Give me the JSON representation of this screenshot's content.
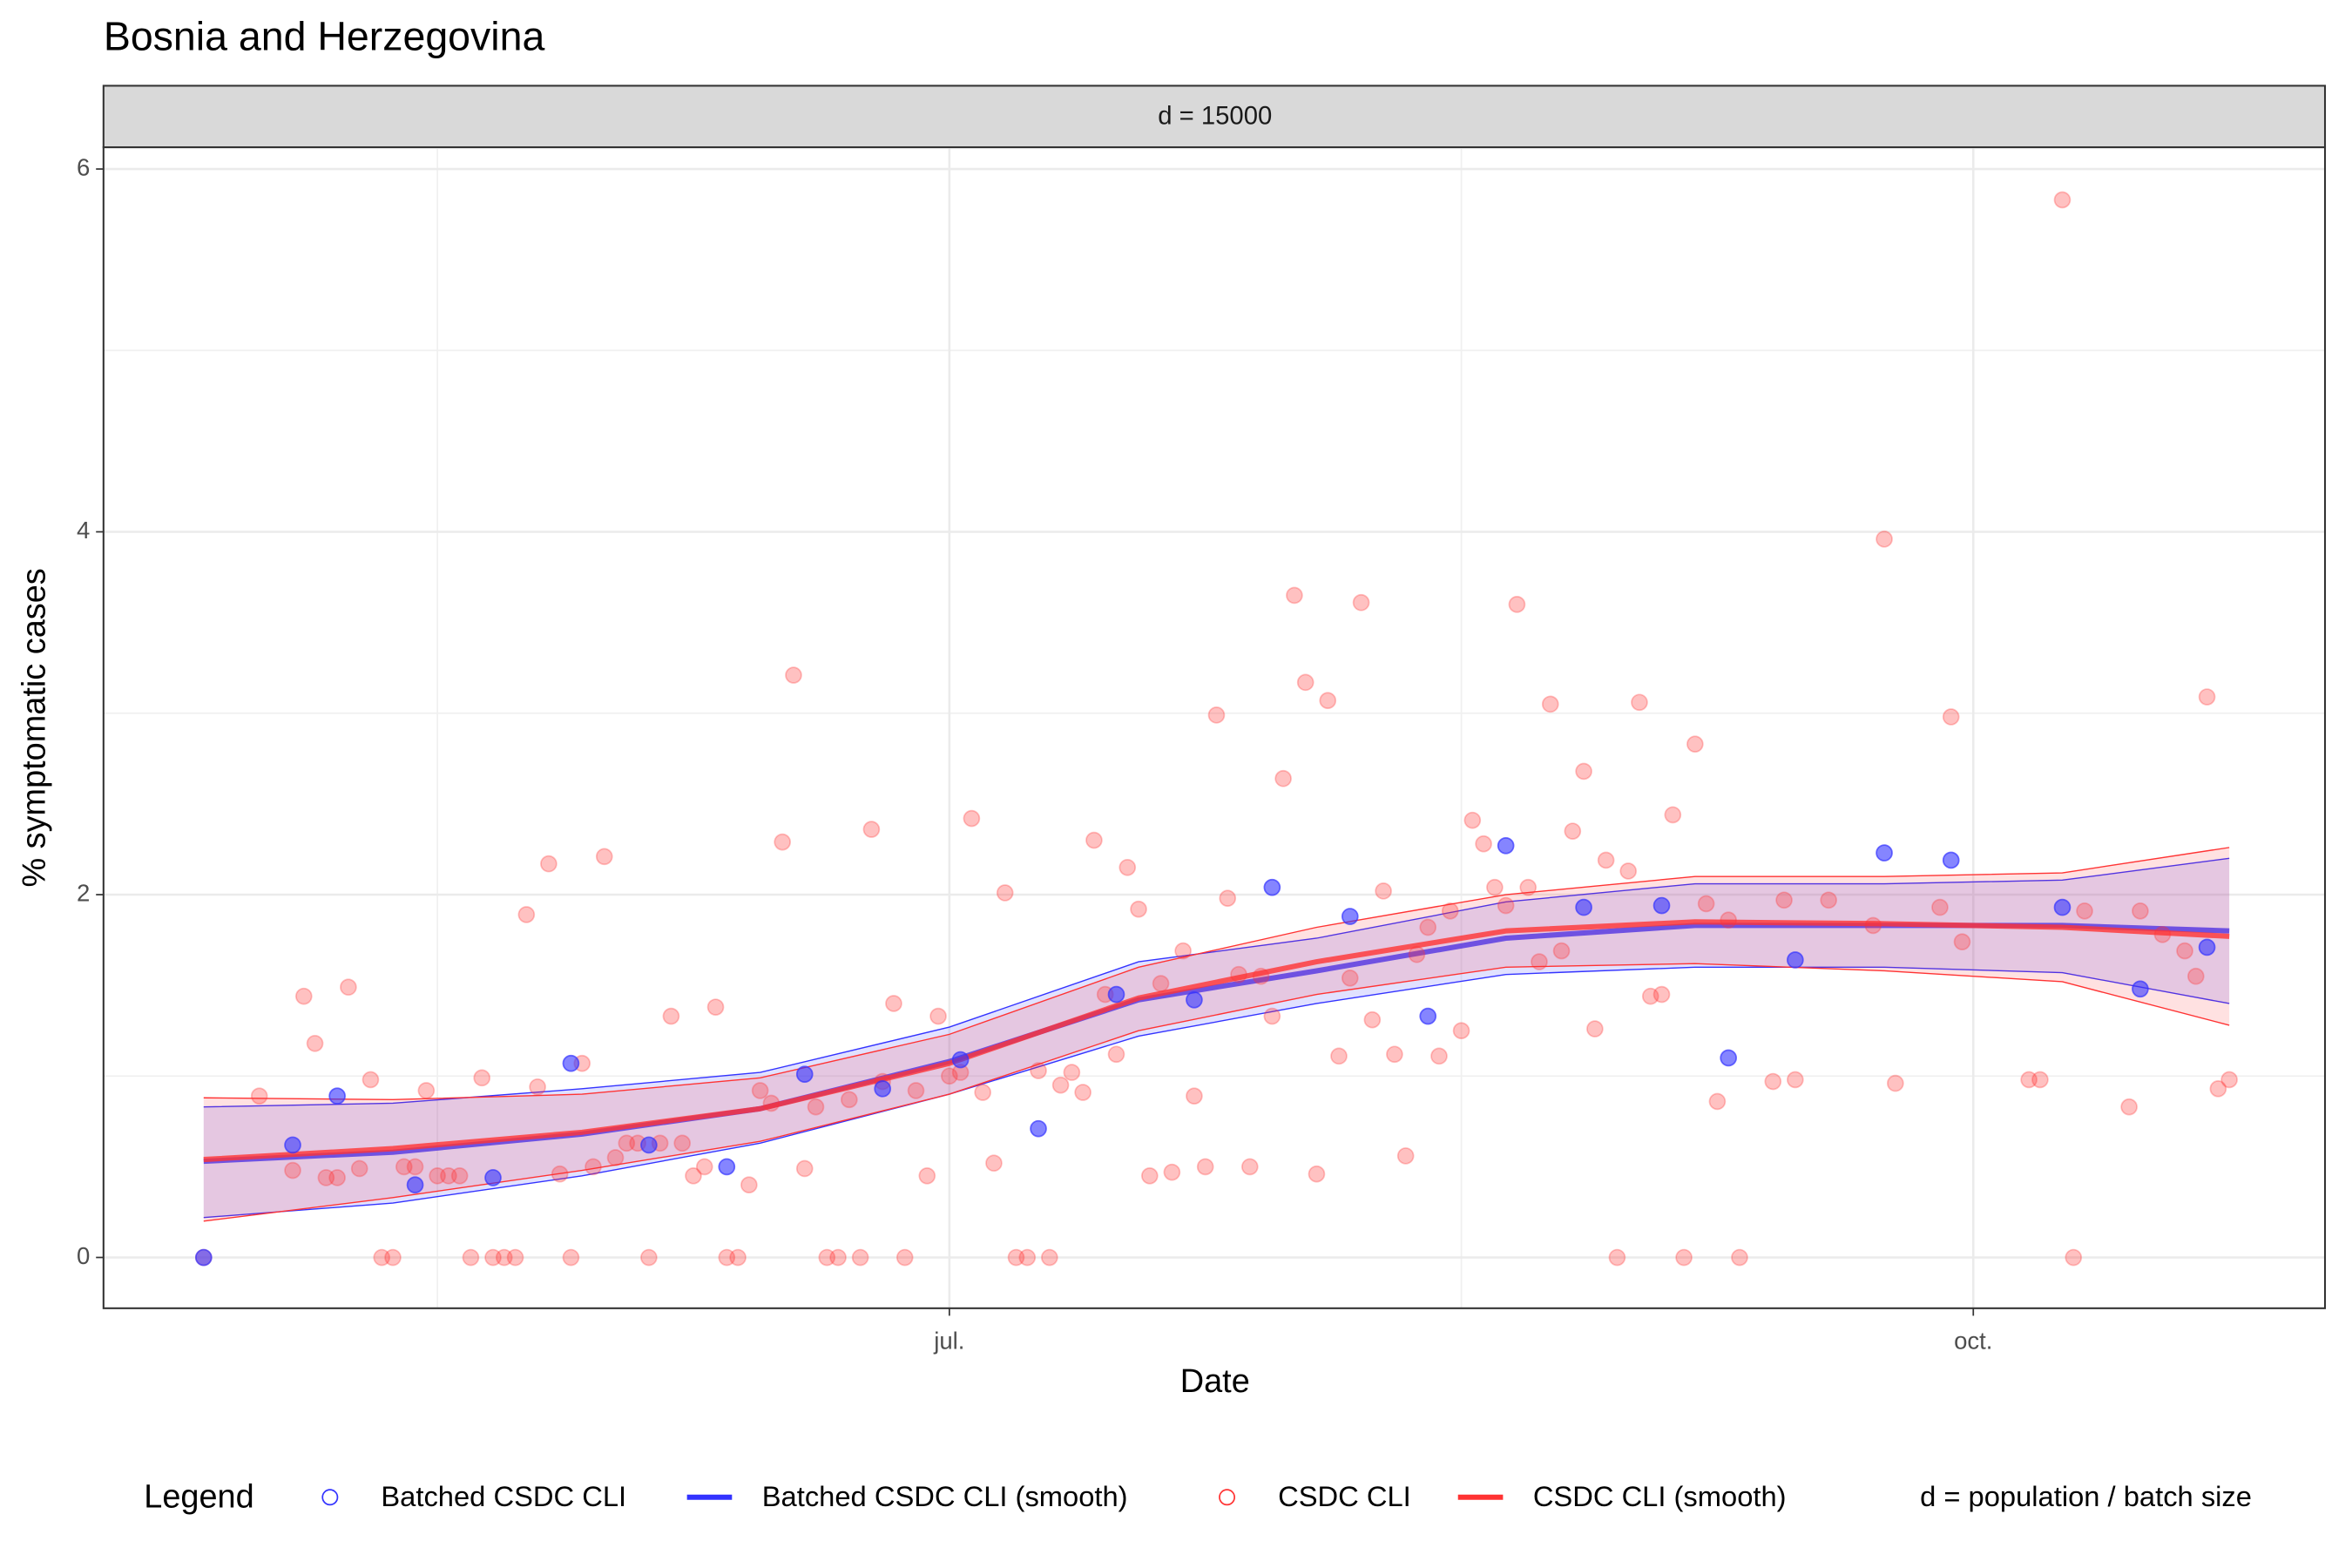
{
  "chart_data": {
    "type": "scatter",
    "title": "Bosnia and Herzegovina",
    "facet_label": "d = 15000",
    "xlabel": "Date",
    "ylabel": "% symptomatic cases",
    "legend_title": "Legend",
    "legend_note": "d = population / batch size",
    "xlim": [
      -76,
      123.6
    ],
    "ylim": [
      -0.28,
      6.12
    ],
    "xticks": [
      {
        "value": 0,
        "label": "jul."
      },
      {
        "value": 92,
        "label": "oct."
      }
    ],
    "xminor": [
      -46,
      46
    ],
    "yticks": [
      0,
      2,
      4,
      6
    ],
    "yminor": [
      1,
      3,
      5
    ],
    "grid": true,
    "series": [
      {
        "name": "CSDC CLI",
        "kind": "points",
        "color": "#ff3333",
        "x": [
          -67,
          -62,
          -59,
          -58,
          -57,
          -56,
          -55,
          -54,
          -53,
          -52,
          -51,
          -50,
          -49,
          -48,
          -47,
          -46,
          -45,
          -44,
          -43,
          -42,
          -41,
          -40,
          -39,
          -38,
          -37,
          -36,
          -35,
          -34,
          -33,
          -32,
          -31,
          -30,
          -29,
          -28,
          -27,
          -26,
          -25,
          -24,
          -23,
          -22,
          -21,
          -20,
          -19,
          -18,
          -17,
          -16,
          -15,
          -14,
          -13,
          -12,
          -11,
          -10,
          -9,
          -8,
          -7,
          -6,
          -5,
          -4,
          -3,
          -2,
          -1,
          0,
          1,
          2,
          3,
          4,
          5,
          6,
          7,
          8,
          9,
          10,
          11,
          12,
          13,
          14,
          15,
          16,
          17,
          18,
          19,
          20,
          21,
          22,
          23,
          24,
          25,
          26,
          27,
          28,
          29,
          30,
          31,
          32,
          33,
          34,
          35,
          36,
          37,
          38,
          39,
          40,
          41,
          42,
          43,
          44,
          45,
          46,
          47,
          48,
          49,
          50,
          51,
          52,
          53,
          54,
          55,
          56,
          57,
          58,
          59,
          60,
          61,
          62,
          63,
          64,
          65,
          66,
          67,
          68,
          69,
          70,
          71,
          74,
          75,
          76,
          79,
          83,
          84,
          85,
          89,
          90,
          91,
          97,
          98,
          100,
          101,
          102,
          106,
          107,
          109,
          111,
          112,
          113,
          114,
          115
        ],
        "values": [
          0,
          0.89,
          0.48,
          1.44,
          1.18,
          0.44,
          0.44,
          1.49,
          0.49,
          0.98,
          0,
          0,
          0.5,
          0.5,
          0.92,
          0.45,
          0.45,
          0.45,
          0,
          0.99,
          0,
          0,
          0,
          1.89,
          0.94,
          2.17,
          0.46,
          0,
          1.07,
          0.5,
          2.21,
          0.55,
          0.63,
          0.63,
          0,
          0.63,
          1.33,
          0.63,
          0.45,
          0.5,
          1.38,
          0,
          0,
          0.4,
          0.92,
          0.85,
          2.29,
          3.21,
          0.49,
          0.83,
          0,
          0,
          0.87,
          0,
          2.36,
          0.97,
          1.4,
          0,
          0.92,
          0.45,
          1.33,
          1.0,
          1.02,
          2.42,
          0.91,
          0.52,
          2.01,
          0,
          0,
          1.03,
          0,
          0.95,
          1.02,
          0.91,
          2.3,
          1.45,
          1.12,
          2.15,
          1.92,
          0.45,
          1.51,
          0.47,
          1.69,
          0.89,
          0.5,
          2.99,
          1.98,
          1.56,
          0.5,
          1.55,
          1.33,
          2.64,
          3.65,
          3.17,
          0.46,
          3.07,
          1.11,
          1.54,
          3.61,
          1.31,
          2.02,
          1.12,
          0.56,
          1.67,
          1.82,
          1.11,
          1.91,
          1.25,
          2.41,
          2.28,
          2.04,
          1.94,
          3.6,
          2.04,
          1.63,
          3.05,
          1.69,
          2.35,
          2.68,
          1.26,
          2.19,
          0,
          2.13,
          3.06,
          1.44,
          1.45,
          2.44,
          0,
          2.83,
          1.95,
          0.86,
          1.86,
          0,
          0.97,
          1.97,
          0.98,
          1.97,
          1.83,
          3.96,
          0.96,
          1.93,
          2.98,
          1.74,
          0.98,
          0.98,
          5.83,
          0,
          1.91,
          0.83,
          1.91,
          1.78,
          1.69,
          1.55,
          3.09,
          0.93,
          0.98
        ]
      },
      {
        "name": "Batched CSDC CLI",
        "kind": "points",
        "color": "#3333ff",
        "x": [
          -67,
          -59,
          -55,
          -48,
          -41,
          -34,
          -27,
          -20,
          -13,
          -6,
          1,
          8,
          15,
          22,
          29,
          36,
          43,
          50,
          57,
          64,
          70,
          76,
          84,
          90,
          100,
          107,
          113
        ],
        "values": [
          0,
          0.62,
          0.89,
          0.4,
          0.44,
          1.07,
          0.62,
          0.5,
          1.01,
          0.93,
          1.09,
          0.71,
          1.45,
          1.42,
          2.04,
          1.88,
          1.33,
          2.27,
          1.93,
          1.94,
          1.1,
          1.64,
          2.23,
          2.19,
          1.93,
          1.48,
          1.71
        ]
      },
      {
        "name": "Batched CSDC CLI (smooth)",
        "kind": "smooth",
        "color": "#3333ff",
        "x": [
          -67,
          -50,
          -33,
          -17,
          0,
          17,
          33,
          50,
          67,
          84,
          100,
          115
        ],
        "values": [
          0.53,
          0.58,
          0.68,
          0.82,
          1.08,
          1.42,
          1.58,
          1.76,
          1.83,
          1.83,
          1.83,
          1.8
        ],
        "lower": [
          0.22,
          0.3,
          0.45,
          0.63,
          0.9,
          1.22,
          1.4,
          1.56,
          1.6,
          1.6,
          1.57,
          1.4
        ],
        "upper": [
          0.83,
          0.85,
          0.93,
          1.02,
          1.27,
          1.63,
          1.76,
          1.96,
          2.06,
          2.06,
          2.08,
          2.2
        ]
      },
      {
        "name": "CSDC CLI (smooth)",
        "kind": "smooth",
        "color": "#ff3333",
        "x": [
          -67,
          -50,
          -33,
          -17,
          0,
          17,
          33,
          50,
          67,
          84,
          100,
          115
        ],
        "values": [
          0.54,
          0.6,
          0.69,
          0.82,
          1.07,
          1.43,
          1.63,
          1.8,
          1.85,
          1.84,
          1.82,
          1.77
        ],
        "lower": [
          0.2,
          0.33,
          0.48,
          0.64,
          0.9,
          1.25,
          1.45,
          1.6,
          1.62,
          1.58,
          1.52,
          1.28
        ],
        "upper": [
          0.88,
          0.87,
          0.9,
          0.99,
          1.23,
          1.6,
          1.82,
          2.0,
          2.1,
          2.1,
          2.12,
          2.26
        ]
      }
    ]
  }
}
